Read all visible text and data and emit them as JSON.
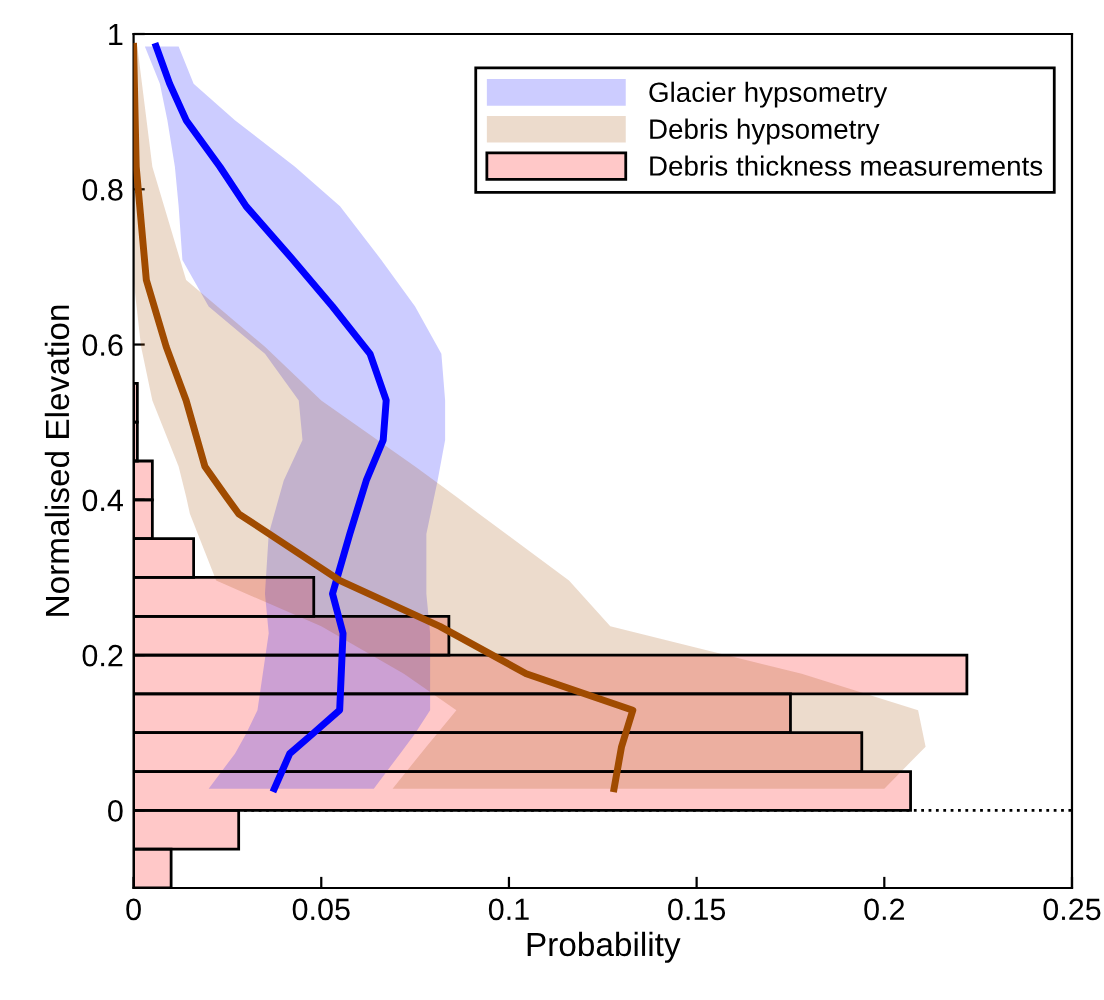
{
  "chart_data": {
    "type": "histogram",
    "orientation": "horizontal",
    "xlabel": "Probability",
    "ylabel": "Normalised Elevation",
    "xlim": [
      0,
      0.25
    ],
    "ylim": [
      -0.1,
      1
    ],
    "xticks": [
      0,
      0.05,
      0.1,
      0.15,
      0.2,
      0.25
    ],
    "yticks": [
      0,
      0.2,
      0.4,
      0.6,
      0.8,
      1
    ],
    "grid": false,
    "legend": "top right",
    "ref_lines": [
      {
        "axis": "y",
        "value": 0,
        "line_style": "dotted",
        "color": "#000000"
      }
    ],
    "series": [
      {
        "name": "Glacier hypsometry",
        "type": "line",
        "color": "#0000ff",
        "x": [
          0.984,
          0.936,
          0.889,
          0.829,
          0.778,
          0.709,
          0.649,
          0.588,
          0.528,
          0.477,
          0.425,
          0.356,
          0.279,
          0.228,
          0.129,
          0.099,
          0.073,
          0.028
        ],
        "values": [
          0.006,
          0.0096,
          0.014,
          0.023,
          0.03,
          0.0425,
          0.053,
          0.063,
          0.0673,
          0.0665,
          0.062,
          0.0576,
          0.053,
          0.0558,
          0.0549,
          0.0478,
          0.0416,
          0.0375
        ],
        "lower": [
          0.003,
          0.007,
          0.009,
          0.011,
          0.012,
          0.013,
          0.02,
          0.035,
          0.044,
          0.045,
          0.04,
          0.036,
          0.035,
          0.036,
          0.033,
          0.03,
          0.027,
          0.02
        ],
        "upper": [
          0.012,
          0.016,
          0.027,
          0.043,
          0.055,
          0.066,
          0.075,
          0.082,
          0.083,
          0.083,
          0.081,
          0.078,
          0.078,
          0.079,
          0.079,
          0.075,
          0.071,
          0.064
        ]
      },
      {
        "name": "Debris hypsometry",
        "type": "line",
        "color": "#a04b00",
        "x": [
          0.984,
          0.829,
          0.683,
          0.597,
          0.528,
          0.443,
          0.404,
          0.382,
          0.296,
          0.237,
          0.176,
          0.129,
          0.082,
          0.028
        ],
        "values": [
          0,
          0.0007,
          0.0034,
          0.0087,
          0.014,
          0.019,
          0.0247,
          0.028,
          0.055,
          0.0816,
          0.1046,
          0.133,
          0.13,
          0.128
        ],
        "lower": [
          0,
          0,
          0,
          0.002,
          0.005,
          0.012,
          0.014,
          0.015,
          0.022,
          0.05,
          0.072,
          0.086,
          0.078,
          0.069
        ],
        "upper": [
          0.001,
          0.005,
          0.014,
          0.035,
          0.05,
          0.075,
          0.086,
          0.092,
          0.116,
          0.127,
          0.178,
          0.209,
          0.211,
          0.2
        ]
      },
      {
        "name": "Debris thickness measurements",
        "color": "#ffc8c8",
        "bins": [
          -0.1,
          -0.05,
          0,
          0.05,
          0.1,
          0.15,
          0.2,
          0.25,
          0.3,
          0.35,
          0.4,
          0.45,
          0.5,
          0.55
        ],
        "values": [
          0.01,
          0.028,
          0.207,
          0.194,
          0.175,
          0.222,
          0.084,
          0.048,
          0.016,
          0.005,
          0.005,
          0.001,
          0.001
        ]
      }
    ]
  }
}
